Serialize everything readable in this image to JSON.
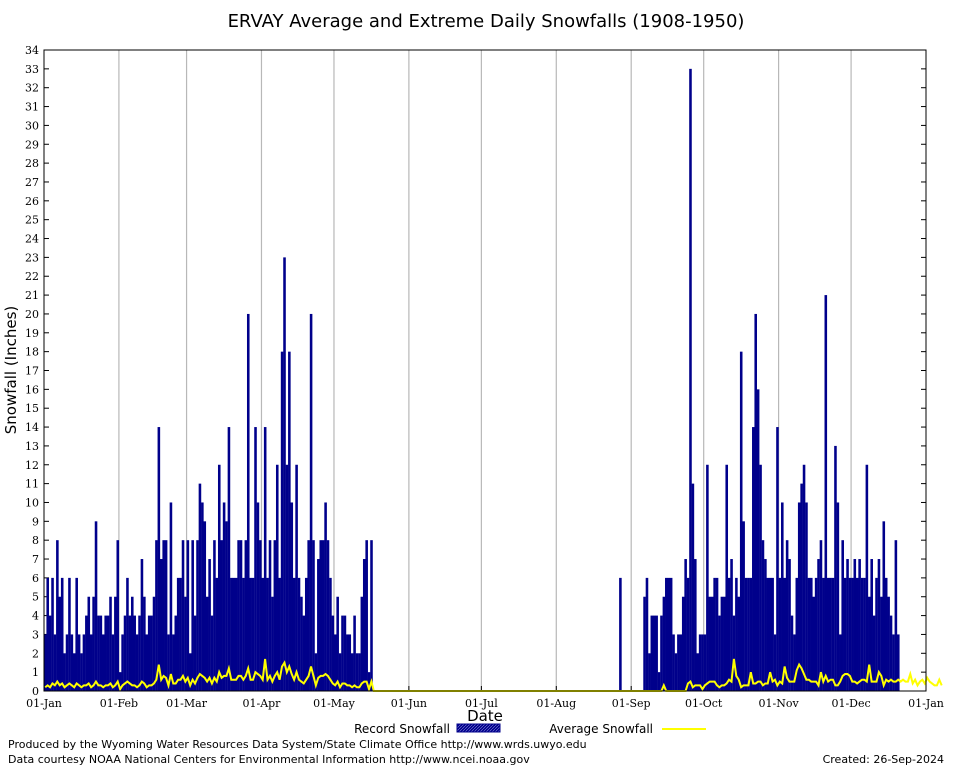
{
  "chart_data": {
    "type": "bar",
    "title": "ERVAY Average and Extreme Daily Snowfalls (1908-1950)",
    "xlabel": "Date",
    "ylabel": "Snowfall (Inches)",
    "ylim": [
      0,
      34
    ],
    "y_ticks": [
      0,
      1,
      2,
      3,
      4,
      5,
      6,
      7,
      8,
      9,
      10,
      11,
      12,
      13,
      14,
      15,
      16,
      17,
      18,
      19,
      20,
      21,
      22,
      23,
      24,
      25,
      26,
      27,
      28,
      29,
      30,
      31,
      32,
      33,
      34
    ],
    "x_ticks": [
      {
        "label": "01-Jan",
        "day": 1
      },
      {
        "label": "01-Feb",
        "day": 32
      },
      {
        "label": "01-Mar",
        "day": 60
      },
      {
        "label": "01-Apr",
        "day": 91
      },
      {
        "label": "01-May",
        "day": 121
      },
      {
        "label": "01-Jun",
        "day": 152
      },
      {
        "label": "01-Jul",
        "day": 182
      },
      {
        "label": "01-Aug",
        "day": 213
      },
      {
        "label": "01-Sep",
        "day": 244
      },
      {
        "label": "01-Oct",
        "day": 274
      },
      {
        "label": "01-Nov",
        "day": 305
      },
      {
        "label": "01-Dec",
        "day": 335
      },
      {
        "label": "01-Jan",
        "day": 366
      }
    ],
    "grid": true,
    "legend_position": "bottom",
    "series": [
      {
        "name": "Record Snowfall",
        "color": "#00008b",
        "description": "Daily record snowfall, ordered by day of year from 01-Jan",
        "values": [
          3,
          6,
          4,
          6,
          3,
          8,
          5,
          6,
          2,
          3,
          6,
          3,
          2,
          6,
          3,
          2,
          3,
          4,
          5,
          3,
          5,
          9,
          4,
          4,
          3,
          4,
          4,
          5,
          3,
          5,
          8,
          1,
          3,
          4,
          6,
          4,
          5,
          4,
          3,
          4,
          7,
          5,
          3,
          4,
          4,
          5,
          8,
          14,
          7,
          8,
          8,
          3,
          10,
          3,
          4,
          6,
          6,
          8,
          5,
          8,
          2,
          8,
          4,
          8,
          11,
          10,
          9,
          5,
          7,
          4,
          8,
          6,
          12,
          8,
          10,
          9,
          14,
          6,
          6,
          6,
          8,
          8,
          6,
          8,
          20,
          6,
          6,
          14,
          10,
          8,
          6,
          14,
          6,
          8,
          5,
          8,
          12,
          6,
          18,
          23,
          12,
          18,
          10,
          6,
          12,
          6,
          5,
          4,
          6,
          8,
          20,
          8,
          2,
          7,
          8,
          8,
          10,
          8,
          6,
          4,
          3,
          5,
          2,
          4,
          4,
          3,
          3,
          2,
          4,
          2,
          2,
          5,
          7,
          8,
          1,
          8,
          0,
          0,
          0,
          0,
          0,
          0,
          0,
          0,
          0,
          0,
          0,
          0,
          0,
          0,
          0,
          0,
          0,
          0,
          0,
          0,
          0,
          0,
          0,
          0,
          0,
          0,
          0,
          0,
          0,
          0,
          0,
          0,
          0,
          0,
          0,
          0,
          0,
          0,
          0,
          0,
          0,
          0,
          0,
          0,
          0,
          0,
          0,
          0,
          0,
          0,
          0,
          0,
          0,
          0,
          0,
          0,
          0,
          0,
          0,
          0,
          0,
          0,
          0,
          0,
          0,
          0,
          0,
          0,
          0,
          0,
          0,
          0,
          0,
          0,
          0,
          0,
          0,
          0,
          0,
          0,
          0,
          0,
          0,
          0,
          0,
          0,
          0,
          0,
          0,
          0,
          0,
          0,
          0,
          0,
          0,
          0,
          0,
          0,
          0,
          0,
          0,
          0,
          6,
          0,
          0,
          0,
          0,
          0,
          0,
          0,
          0,
          0,
          5,
          6,
          2,
          4,
          4,
          4,
          1,
          4,
          5,
          6,
          6,
          6,
          3,
          2,
          3,
          3,
          5,
          7,
          6,
          33,
          11,
          7,
          2,
          3,
          3,
          3,
          12,
          5,
          5,
          6,
          6,
          4,
          5,
          5,
          12,
          6,
          7,
          4,
          6,
          5,
          18,
          9,
          6,
          6,
          6,
          14,
          20,
          16,
          12,
          8,
          7,
          6,
          6,
          6,
          3,
          14,
          6,
          10,
          6,
          8,
          7,
          4,
          3,
          6,
          10,
          11,
          12,
          10,
          6,
          6,
          5,
          6,
          7,
          8,
          6,
          21,
          6,
          6,
          6,
          13,
          10,
          3,
          8,
          6,
          7,
          6,
          6,
          7,
          6,
          7,
          6,
          6,
          12,
          5,
          7,
          4,
          6,
          7,
          5,
          9,
          6,
          5,
          4,
          3,
          8,
          3
        ]
      },
      {
        "name": "Average Snowfall",
        "color": "#ffff00",
        "description": "Daily average snowfall, ordered by day of year from 01-Jan",
        "values": [
          0.2,
          0.3,
          0.2,
          0.4,
          0.3,
          0.5,
          0.3,
          0.4,
          0.2,
          0.3,
          0.4,
          0.3,
          0.2,
          0.4,
          0.3,
          0.2,
          0.3,
          0.3,
          0.4,
          0.2,
          0.3,
          0.5,
          0.3,
          0.3,
          0.2,
          0.3,
          0.3,
          0.4,
          0.2,
          0.3,
          0.5,
          0.1,
          0.3,
          0.4,
          0.5,
          0.4,
          0.3,
          0.3,
          0.2,
          0.3,
          0.5,
          0.4,
          0.2,
          0.3,
          0.3,
          0.4,
          0.6,
          1.4,
          0.6,
          0.8,
          0.7,
          0.3,
          0.9,
          0.4,
          0.4,
          0.6,
          0.6,
          0.8,
          0.5,
          0.7,
          0.3,
          0.6,
          0.4,
          0.7,
          0.9,
          0.8,
          0.7,
          0.5,
          0.7,
          0.4,
          0.7,
          0.5,
          1.0,
          0.7,
          0.8,
          0.8,
          1.2,
          0.6,
          0.6,
          0.6,
          0.8,
          0.8,
          0.6,
          0.8,
          1.2,
          0.6,
          0.6,
          1.0,
          0.9,
          0.8,
          0.6,
          1.7,
          0.6,
          0.8,
          0.5,
          0.8,
          1.0,
          0.6,
          1.3,
          1.5,
          1.0,
          1.3,
          0.9,
          0.6,
          1.0,
          0.6,
          0.5,
          0.4,
          0.6,
          0.8,
          1.3,
          0.8,
          0.3,
          0.7,
          0.8,
          0.8,
          0.9,
          0.8,
          0.6,
          0.4,
          0.3,
          0.5,
          0.2,
          0.4,
          0.4,
          0.3,
          0.3,
          0.2,
          0.3,
          0.2,
          0.2,
          0.4,
          0.5,
          0.5,
          0.1,
          0.5,
          0,
          0,
          0,
          0,
          0,
          0,
          0,
          0,
          0,
          0,
          0,
          0,
          0,
          0,
          0,
          0,
          0,
          0,
          0,
          0,
          0,
          0,
          0,
          0,
          0,
          0,
          0,
          0,
          0,
          0,
          0,
          0,
          0,
          0,
          0,
          0,
          0,
          0,
          0,
          0,
          0,
          0,
          0,
          0,
          0,
          0,
          0,
          0,
          0,
          0,
          0,
          0,
          0,
          0,
          0,
          0,
          0,
          0,
          0,
          0,
          0,
          0,
          0,
          0,
          0,
          0,
          0,
          0,
          0,
          0,
          0,
          0,
          0,
          0,
          0,
          0,
          0,
          0,
          0,
          0,
          0,
          0,
          0,
          0,
          0,
          0,
          0,
          0,
          0,
          0,
          0,
          0,
          0,
          0,
          0,
          0,
          0,
          0,
          0,
          0,
          0,
          0,
          0,
          0,
          0,
          0,
          0,
          0,
          0,
          0,
          0,
          0,
          0,
          0,
          0,
          0,
          0,
          0,
          0,
          0,
          0.3,
          0,
          0,
          0,
          0,
          0,
          0,
          0,
          0,
          0,
          0.4,
          0.5,
          0.2,
          0.3,
          0.3,
          0.3,
          0.1,
          0.3,
          0.4,
          0.5,
          0.5,
          0.5,
          0.3,
          0.2,
          0.3,
          0.3,
          0.4,
          0.6,
          0.5,
          1.7,
          0.8,
          0.6,
          0.2,
          0.3,
          0.3,
          0.3,
          1.0,
          0.4,
          0.4,
          0.5,
          0.5,
          0.3,
          0.4,
          0.4,
          1.0,
          0.5,
          0.6,
          0.3,
          0.5,
          0.4,
          1.3,
          0.7,
          0.5,
          0.5,
          0.5,
          1.1,
          1.4,
          1.2,
          0.9,
          0.6,
          0.6,
          0.5,
          0.5,
          0.5,
          0.3,
          1.0,
          0.5,
          0.8,
          0.5,
          0.6,
          0.6,
          0.3,
          0.3,
          0.5,
          0.8,
          0.9,
          0.9,
          0.8,
          0.5,
          0.5,
          0.4,
          0.5,
          0.6,
          0.6,
          0.5,
          1.4,
          0.5,
          0.5,
          0.5,
          1.0,
          0.8,
          0.3,
          0.6,
          0.5,
          0.6,
          0.5,
          0.5,
          0.6,
          0.5,
          0.6,
          0.5,
          0.5,
          0.9,
          0.4,
          0.6,
          0.3,
          0.5,
          0.6,
          0.4,
          0.7,
          0.5,
          0.4,
          0.3,
          0.3,
          0.6,
          0.3
        ]
      }
    ]
  },
  "footer": {
    "producer": "Produced by the Wyoming Water Resources Data System/State Climate Office http://www.wrds.uwyo.edu",
    "courtesy": "Data courtesy NOAA National Centers for Environmental Information http://www.ncei.noaa.gov",
    "created": "Created:  26-Sep-2024"
  }
}
